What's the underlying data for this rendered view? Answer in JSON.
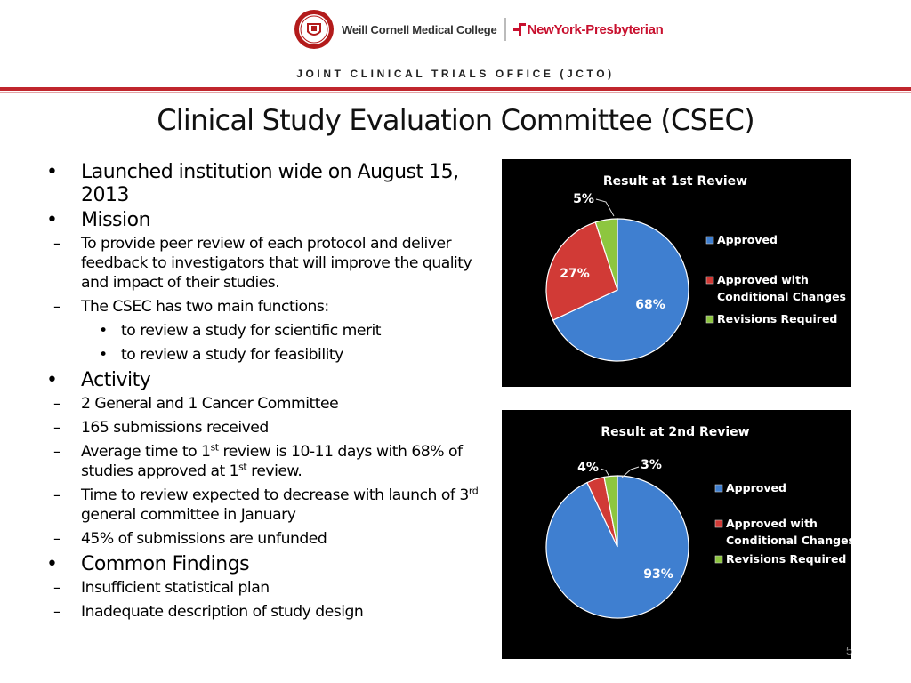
{
  "header": {
    "wcmc_name": "Weill Cornell Medical College",
    "nyp_name": "NewYork-Presbyterian",
    "office": "JOINT CLINICAL TRIALS OFFICE (JCTO)",
    "colors": {
      "accent_red": "#c0262d"
    }
  },
  "slide": {
    "title": "Clinical Study Evaluation Committee (CSEC)",
    "page_number": "5",
    "bullet_marker": "•",
    "dash_marker": "–"
  },
  "bullets": {
    "launched": "Launched institution wide on August 15, 2013",
    "mission": {
      "label": "Mission",
      "sub1": "To provide peer review of each protocol and deliver feedback to investigators that will improve the quality and impact of their studies.",
      "sub2": "The CSEC has two main functions:",
      "func1": "to review a study for scientific merit",
      "func2": "to review a study for feasibility"
    },
    "activity": {
      "label": "Activity",
      "a1": "2 General and 1 Cancer Committee",
      "a2": "165 submissions received",
      "a3_pre": "Average time to 1",
      "a3_sup1": "st",
      "a3_mid": " review is 10-11 days with 68% of studies approved at 1",
      "a3_sup2": "st",
      "a3_post": " review.",
      "a4_pre": "Time to review expected to decrease with launch of 3",
      "a4_sup": "rd",
      "a4_post": " general committee in January",
      "a5": "45% of submissions are unfunded"
    },
    "findings": {
      "label": "Common Findings",
      "f1": "Insufficient statistical plan",
      "f2": "Inadequate description of study design"
    }
  },
  "chart_data": [
    {
      "type": "pie",
      "title": "Result at 1st Review",
      "categories": [
        "Approved",
        "Approved with Conditional Changes",
        "Revisions Required"
      ],
      "values": [
        68,
        27,
        5
      ],
      "labels": [
        "68%",
        "27%",
        "5%"
      ],
      "colors": [
        "#3f7fd0",
        "#d13a36",
        "#8dc63f"
      ],
      "legend": "right"
    },
    {
      "type": "pie",
      "title": "Result at 2nd Review",
      "categories": [
        "Approved",
        "Approved with Conditional Changes",
        "Revisions Required"
      ],
      "values": [
        93,
        4,
        3
      ],
      "labels": [
        "93%",
        "4%",
        "3%"
      ],
      "colors": [
        "#3f7fd0",
        "#d13a36",
        "#8dc63f"
      ],
      "legend": "right"
    }
  ]
}
